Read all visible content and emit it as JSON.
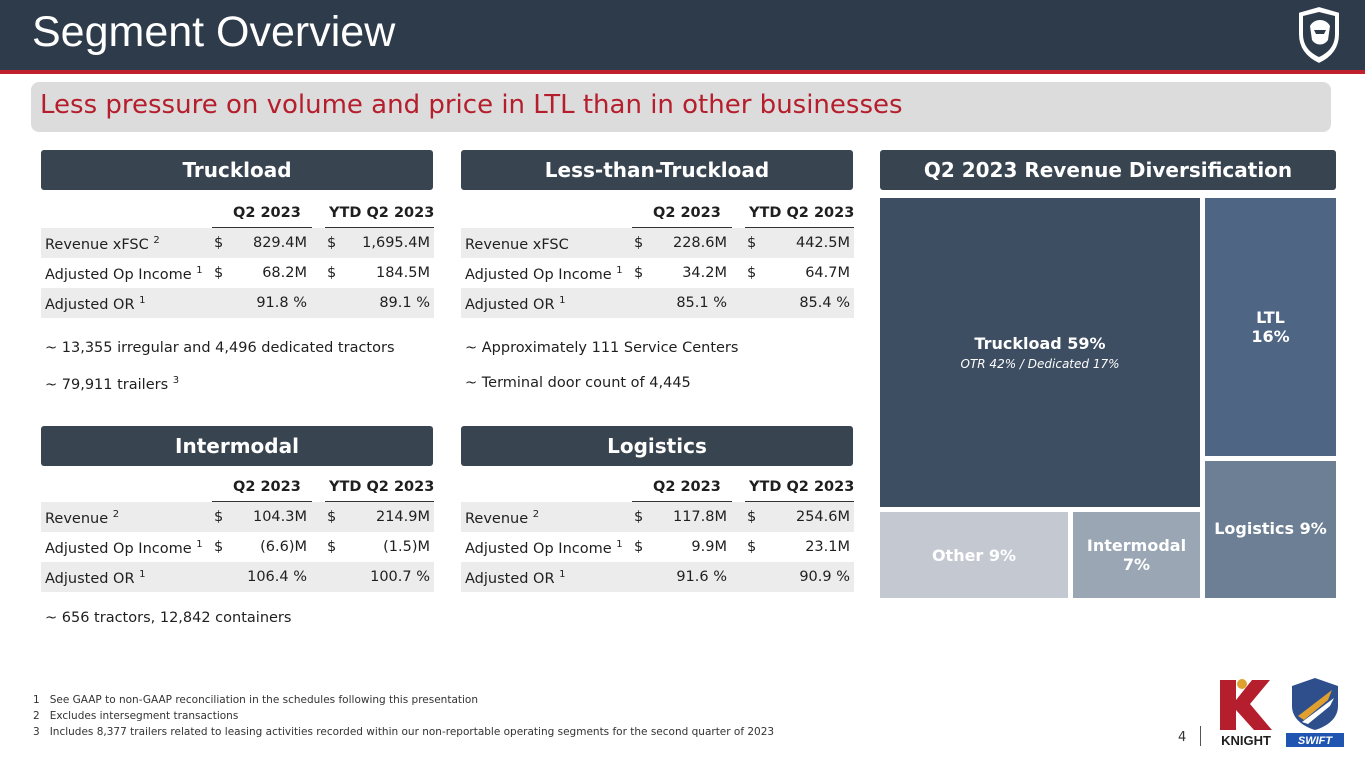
{
  "title": "Segment Overview",
  "subtitle": "Less pressure on volume and price in LTL than in other businesses",
  "columns": {
    "q2": "Q2 2023",
    "ytd": "YTD Q2 2023"
  },
  "truckload": {
    "header": "Truckload",
    "rows": [
      {
        "label": "Revenue xFSC",
        "sup": "2",
        "q2_cur": "$",
        "q2": "829.4M",
        "ytd_cur": "$",
        "ytd": "1,695.4M"
      },
      {
        "label": "Adjusted Op Income",
        "sup": "1",
        "q2_cur": "$",
        "q2": "68.2M",
        "ytd_cur": "$",
        "ytd": "184.5M"
      },
      {
        "label": "Adjusted OR",
        "sup": "1",
        "q2_cur": "",
        "q2": "91.8 %",
        "ytd_cur": "",
        "ytd": "89.1 %"
      }
    ],
    "notes": [
      {
        "text": "~ 13,355 irregular and 4,496 dedicated tractors",
        "sup": ""
      },
      {
        "text": "~ 79,911 trailers",
        "sup": "3"
      }
    ]
  },
  "ltl": {
    "header": "Less-than-Truckload",
    "rows": [
      {
        "label": "Revenue xFSC",
        "sup": "",
        "q2_cur": "$",
        "q2": "228.6M",
        "ytd_cur": "$",
        "ytd": "442.5M"
      },
      {
        "label": "Adjusted Op Income",
        "sup": "1",
        "q2_cur": "$",
        "q2": "34.2M",
        "ytd_cur": "$",
        "ytd": "64.7M"
      },
      {
        "label": "Adjusted OR",
        "sup": "1",
        "q2_cur": "",
        "q2": "85.1 %",
        "ytd_cur": "",
        "ytd": "85.4 %"
      }
    ],
    "notes": [
      {
        "text": "~ Approximately 111 Service Centers",
        "sup": ""
      },
      {
        "text": "~ Terminal door count of 4,445",
        "sup": ""
      }
    ]
  },
  "intermodal": {
    "header": "Intermodal",
    "rows": [
      {
        "label": "Revenue",
        "sup": "2",
        "q2_cur": "$",
        "q2": "104.3M",
        "ytd_cur": "$",
        "ytd": "214.9M"
      },
      {
        "label": "Adjusted Op Income",
        "sup": "1",
        "q2_cur": "$",
        "q2": "(6.6)M",
        "ytd_cur": "$",
        "ytd": "(1.5)M"
      },
      {
        "label": "Adjusted OR",
        "sup": "1",
        "q2_cur": "",
        "q2": "106.4 %",
        "ytd_cur": "",
        "ytd": "100.7 %"
      }
    ],
    "notes": [
      {
        "text": "~  656 tractors, 12,842 containers",
        "sup": ""
      }
    ]
  },
  "logistics": {
    "header": "Logistics",
    "rows": [
      {
        "label": "Revenue",
        "sup": "2",
        "q2_cur": "$",
        "q2": "117.8M",
        "ytd_cur": "$",
        "ytd": "254.6M"
      },
      {
        "label": "Adjusted Op Income",
        "sup": "1",
        "q2_cur": "$",
        "q2": "9.9M",
        "ytd_cur": "$",
        "ytd": "23.1M"
      },
      {
        "label": "Adjusted OR",
        "sup": "1",
        "q2_cur": "",
        "q2": "91.6 %",
        "ytd_cur": "",
        "ytd": "90.9 %"
      }
    ],
    "notes": []
  },
  "diversification": {
    "header": "Q2 2023 Revenue Diversification",
    "tiles": {
      "truckload": {
        "label": "Truckload 59%",
        "sub": "OTR 42% / Dedicated 17%",
        "color": "#3e4e62"
      },
      "ltl": {
        "label": "LTL",
        "value": "16%",
        "color": "#4e6683"
      },
      "logistics": {
        "label": "Logistics 9%",
        "color": "#6d7f94"
      },
      "other": {
        "label": "Other 9%",
        "color": "#c4c9d1"
      },
      "intermodal": {
        "label": "Intermodal",
        "value": "7%",
        "color": "#9aa6b4"
      }
    }
  },
  "footnotes": [
    {
      "num": "1",
      "text": "See GAAP to non-GAAP reconciliation in the schedules following this presentation"
    },
    {
      "num": "2",
      "text": "Excludes intersegment transactions"
    },
    {
      "num": "3",
      "text": "Includes 8,377 trailers related to leasing activities recorded within our non-reportable operating segments for the second quarter of 2023"
    }
  ],
  "page_number": "4",
  "logos": {
    "knight": "KNIGHT",
    "swift": "SWIFT"
  },
  "colors": {
    "brand_dark": "#2e3b4a",
    "accent_red": "#c0202e",
    "subtitle_red": "#b51e2c"
  }
}
